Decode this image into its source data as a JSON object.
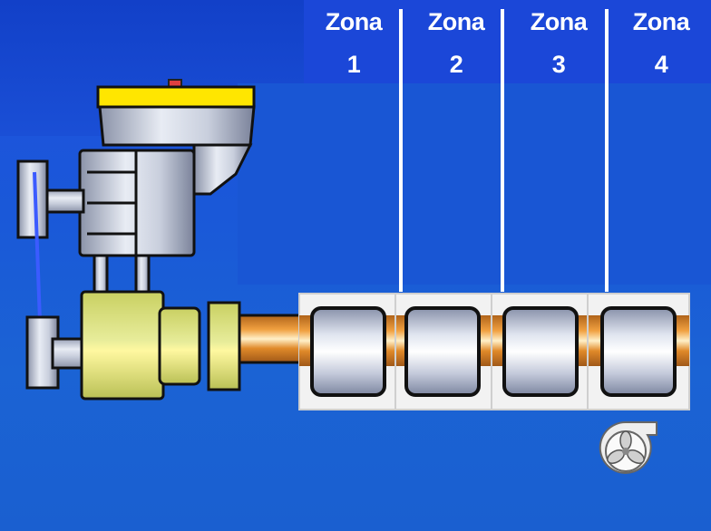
{
  "zones": [
    {
      "label": "Zona",
      "number": "1"
    },
    {
      "label": "Zona",
      "number": "2"
    },
    {
      "label": "Zona",
      "number": "3"
    },
    {
      "label": "Zona",
      "number": "4"
    }
  ],
  "icons": {
    "fan": "cooling-fan-icon",
    "hopper": "hopper-icon",
    "motor": "motor-icon",
    "gearbox": "gearbox-icon",
    "heater": "heater-band-icon"
  },
  "colors": {
    "background": "#1b58d6",
    "zone_header": "#1b47d8",
    "divider": "#ffffff",
    "hopper_band": "#ffe600",
    "gearbox": "#d8e07a",
    "barrel": "#d9781e"
  }
}
